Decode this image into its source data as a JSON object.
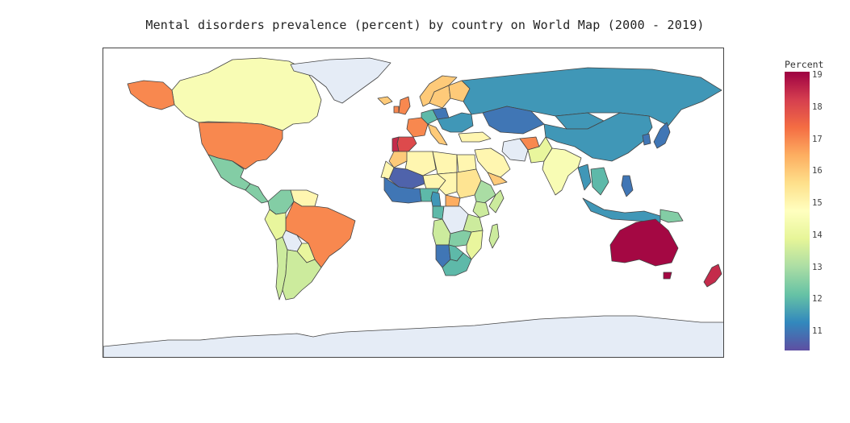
{
  "title": "Mental disorders prevalence (percent) by country on World Map (2000 - 2019)",
  "colorbar": {
    "title": "Percent",
    "min": 10.4,
    "max": 19.1,
    "ticks": [
      "19",
      "18",
      "17",
      "16",
      "15",
      "14",
      "13",
      "12",
      "11"
    ],
    "colors": [
      "#5e4fa2",
      "#3288bd",
      "#66c2a5",
      "#abdda4",
      "#e6f598",
      "#ffffbf",
      "#fee08b",
      "#fdae61",
      "#f46d43",
      "#d53e4f",
      "#9e0142"
    ]
  },
  "colors": {
    "no_data": "#e5ecf6",
    "border": "#444444"
  },
  "regions": [
    {
      "name": "Canada",
      "value": 14.5
    },
    {
      "name": "United States",
      "value": 17.0
    },
    {
      "name": "Alaska",
      "value": 17.0
    },
    {
      "name": "Mexico",
      "value": 12.5
    },
    {
      "name": "Central America",
      "value": 12.5
    },
    {
      "name": "Colombia",
      "value": 12.5
    },
    {
      "name": "Venezuela",
      "value": 15.0
    },
    {
      "name": "Brazil",
      "value": 17.0
    },
    {
      "name": "Peru",
      "value": 14.0
    },
    {
      "name": "Bolivia",
      "value": null
    },
    {
      "name": "Paraguay",
      "value": 14.0
    },
    {
      "name": "Chile",
      "value": 13.5
    },
    {
      "name": "Argentina",
      "value": 13.5
    },
    {
      "name": "Greenland",
      "value": null
    },
    {
      "name": "Iceland",
      "value": 16.0
    },
    {
      "name": "United Kingdom",
      "value": 17.0
    },
    {
      "name": "Ireland",
      "value": 17.0
    },
    {
      "name": "Norway",
      "value": 16.0
    },
    {
      "name": "Sweden",
      "value": 16.0
    },
    {
      "name": "Finland",
      "value": 16.0
    },
    {
      "name": "France",
      "value": 17.0
    },
    {
      "name": "Spain",
      "value": 18.0
    },
    {
      "name": "Portugal",
      "value": 18.5
    },
    {
      "name": "Germany",
      "value": 12.0
    },
    {
      "name": "Poland",
      "value": 11.0
    },
    {
      "name": "Italy",
      "value": 16.0
    },
    {
      "name": "Eastern Europe",
      "value": 11.5
    },
    {
      "name": "Russia",
      "value": 11.5
    },
    {
      "name": "Kazakhstan",
      "value": 11.0
    },
    {
      "name": "Mongolia",
      "value": 11.5
    },
    {
      "name": "China",
      "value": 11.5
    },
    {
      "name": "Japan",
      "value": 11.0
    },
    {
      "name": "Korea",
      "value": 11.0
    },
    {
      "name": "Iran",
      "value": null
    },
    {
      "name": "Afghanistan",
      "value": 17.0
    },
    {
      "name": "Pakistan",
      "value": 14.0
    },
    {
      "name": "India",
      "value": 14.5
    },
    {
      "name": "Saudi Arabia",
      "value": 15.0
    },
    {
      "name": "Yemen",
      "value": 16.0
    },
    {
      "name": "Turkey",
      "value": 15.0
    },
    {
      "name": "Myanmar",
      "value": 11.5
    },
    {
      "name": "Indochina",
      "value": 12.0
    },
    {
      "name": "Indonesia",
      "value": 11.5
    },
    {
      "name": "Papua New Guinea",
      "value": 12.5
    },
    {
      "name": "Philippines",
      "value": 11.0
    },
    {
      "name": "Australia",
      "value": 19.0
    },
    {
      "name": "New Zealand",
      "value": 18.5
    },
    {
      "name": "Tasmania",
      "value": 19.0
    },
    {
      "name": "Morocco",
      "value": 16.0
    },
    {
      "name": "Algeria",
      "value": 15.0
    },
    {
      "name": "Libya",
      "value": 15.0
    },
    {
      "name": "Egypt",
      "value": 15.0
    },
    {
      "name": "Mali",
      "value": 10.7
    },
    {
      "name": "Mauritania",
      "value": 15.0
    },
    {
      "name": "Niger",
      "value": 15.0
    },
    {
      "name": "Chad",
      "value": 15.0
    },
    {
      "name": "Sudan",
      "value": 15.5
    },
    {
      "name": "Ethiopia",
      "value": 13.0
    },
    {
      "name": "Somalia",
      "value": 13.5
    },
    {
      "name": "Nigeria",
      "value": 12.0
    },
    {
      "name": "Central African Republic",
      "value": 16.5
    },
    {
      "name": "Cameroon",
      "value": 11.5
    },
    {
      "name": "West Africa Coast",
      "value": 11.0
    },
    {
      "name": "Congo",
      "value": 12.0
    },
    {
      "name": "DR Congo",
      "value": null
    },
    {
      "name": "Kenya",
      "value": 13.5
    },
    {
      "name": "Tanzania",
      "value": 13.5
    },
    {
      "name": "Angola",
      "value": 13.5
    },
    {
      "name": "Zambia",
      "value": 12.5
    },
    {
      "name": "Mozambique",
      "value": 14.0
    },
    {
      "name": "Namibia",
      "value": 11.0
    },
    {
      "name": "Botswana",
      "value": 12.0
    },
    {
      "name": "South Africa",
      "value": 12.0
    },
    {
      "name": "Madagascar",
      "value": 13.5
    },
    {
      "name": "Antarctica",
      "value": null
    }
  ]
}
